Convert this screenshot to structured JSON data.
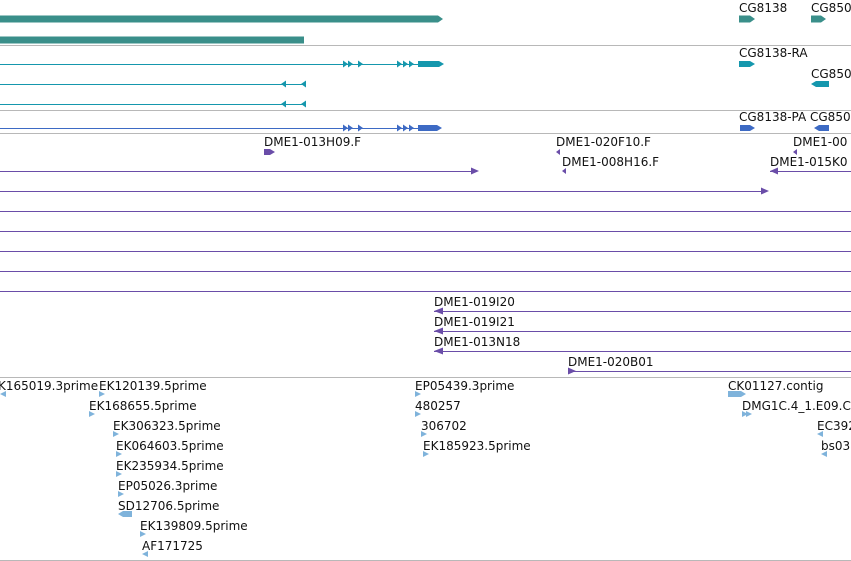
{
  "colors": {
    "gene": "#3a8f8a",
    "transcript": "#1597ad",
    "protein": "#3d6ac4",
    "clone": "#6a4da8",
    "est": "#7fb3db",
    "divider": "#b8b8b8"
  },
  "tracks": {
    "genes": {
      "labels": [
        "CG8138",
        "CG850"
      ]
    },
    "transcripts": {
      "labels": [
        "CG8138-RA",
        "CG850"
      ]
    },
    "proteins": {
      "labels": [
        "CG8138-PA",
        "CG850"
      ]
    },
    "clones": {
      "labels": [
        "DME1-013H09.F",
        "DME1-020F10.F",
        "DME1-00",
        "DME1-008H16.F",
        "DME1-015K0",
        "DME1-019I20",
        "DME1-019I21",
        "DME1-013N18",
        "DME1-020B01"
      ]
    },
    "ests": {
      "labels": [
        "K165019.3prime",
        "EK120139.5prime",
        "EK168655.5prime",
        "EK306323.5prime",
        "EK064603.5prime",
        "EK235934.5prime",
        "EP05026.3prime",
        "SD12706.5prime",
        "EK139809.5prime",
        "AF171725",
        "EP05439.3prime",
        "480257",
        "306702",
        "EK185923.5prime",
        "CK01127.contig",
        "DMG1C.4_1.E09.C",
        "EC392",
        "bs03"
      ]
    }
  }
}
